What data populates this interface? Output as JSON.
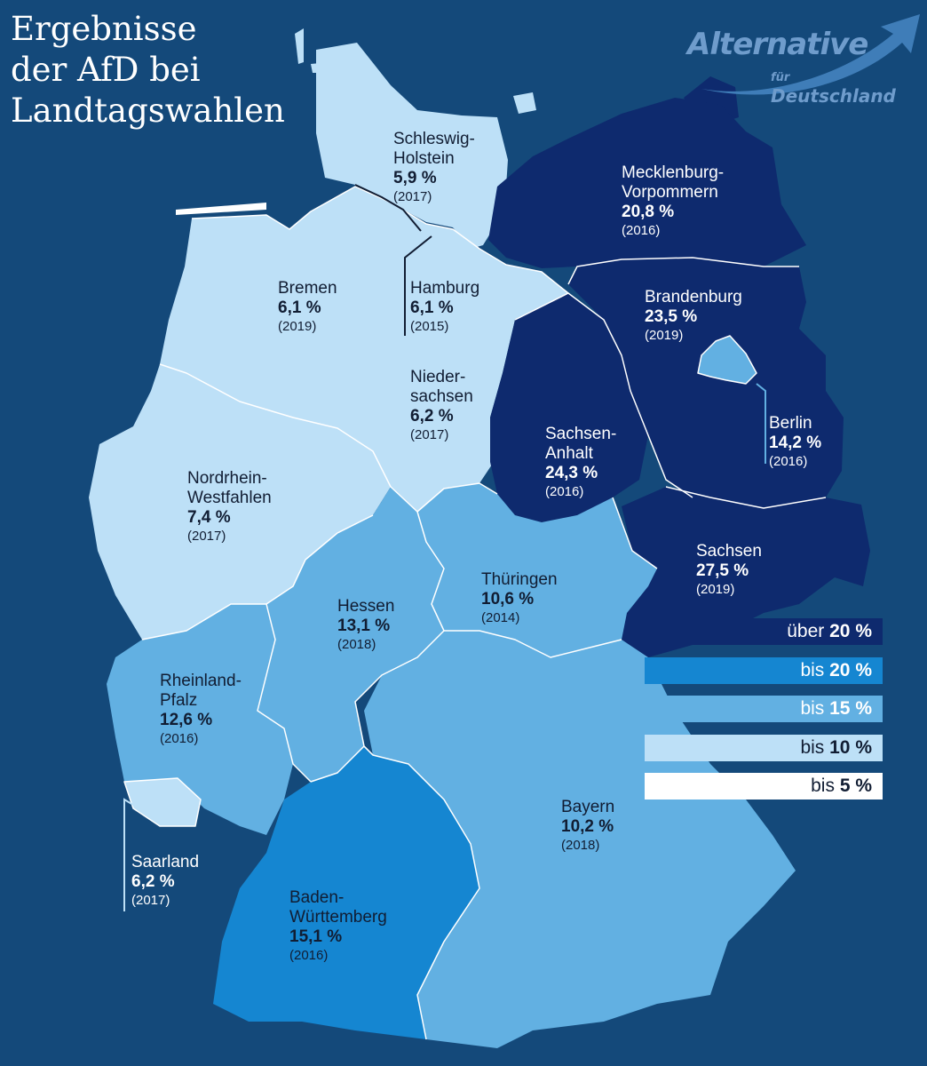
{
  "title": [
    "Ergebnisse",
    "der AfD bei",
    "Landtagswahlen"
  ],
  "logo": {
    "main": "Alternative",
    "sub1": "für",
    "sub2": "Deutschland",
    "icon": "arrow-swoosh-icon"
  },
  "colors": {
    "background": "#14497a",
    "ueber_20": "#0e2a6e",
    "bis_20": "#1586d1",
    "bis_15": "#62b0e2",
    "bis_10": "#bde0f7",
    "bis_5": "#ffffff"
  },
  "states": {
    "schleswig_holstein": {
      "name": "Schleswig-\nHolstein",
      "pct": "5,9 %",
      "year": "(2017)"
    },
    "mecklenburg_vorpommern": {
      "name": "Mecklenburg-\nVorpommern",
      "pct": "20,8 %",
      "year": "(2016)"
    },
    "bremen": {
      "name": "Bremen",
      "pct": "6,1 %",
      "year": "(2019)"
    },
    "hamburg": {
      "name": "Hamburg",
      "pct": "6,1 %",
      "year": "(2015)"
    },
    "brandenburg": {
      "name": "Brandenburg",
      "pct": "23,5 %",
      "year": "(2019)"
    },
    "niedersachsen": {
      "name": "Nieder-\nsachsen",
      "pct": "6,2 %",
      "year": "(2017)"
    },
    "berlin": {
      "name": "Berlin",
      "pct": "14,2 %",
      "year": "(2016)"
    },
    "sachsen_anhalt": {
      "name": "Sachsen-\nAnhalt",
      "pct": "24,3 %",
      "year": "(2016)"
    },
    "nordrhein_westfalen": {
      "name": "Nordrhein-\nWestfahlen",
      "pct": "7,4 %",
      "year": "(2017)"
    },
    "sachsen": {
      "name": "Sachsen",
      "pct": "27,5 %",
      "year": "(2019)"
    },
    "thueringen": {
      "name": "Thüringen",
      "pct": "10,6 %",
      "year": "(2014)"
    },
    "hessen": {
      "name": "Hessen",
      "pct": "13,1 %",
      "year": "(2018)"
    },
    "rheinland_pfalz": {
      "name": "Rheinland-\nPfalz",
      "pct": "12,6 %",
      "year": "(2016)"
    },
    "bayern": {
      "name": "Bayern",
      "pct": "10,2 %",
      "year": "(2018)"
    },
    "saarland": {
      "name": "Saarland",
      "pct": "6,2 %",
      "year": "(2017)"
    },
    "baden_wuerttemberg": {
      "name": "Baden-\nWürttemberg",
      "pct": "15,1 %",
      "year": "(2016)"
    }
  },
  "legend": [
    {
      "prefix": "über ",
      "value": "20 %",
      "color": "#0e2a6e",
      "text_color": "#ffffff"
    },
    {
      "prefix": "bis ",
      "value": "20 %",
      "color": "#1586d1",
      "text_color": "#ffffff"
    },
    {
      "prefix": "bis ",
      "value": "15 %",
      "color": "#62b0e2",
      "text_color": "#ffffff"
    },
    {
      "prefix": "bis ",
      "value": "10 %",
      "color": "#bde0f7",
      "text_color": "#111d33"
    },
    {
      "prefix": "bis ",
      "value": "5 %",
      "color": "#ffffff",
      "text_color": "#111d33"
    }
  ]
}
